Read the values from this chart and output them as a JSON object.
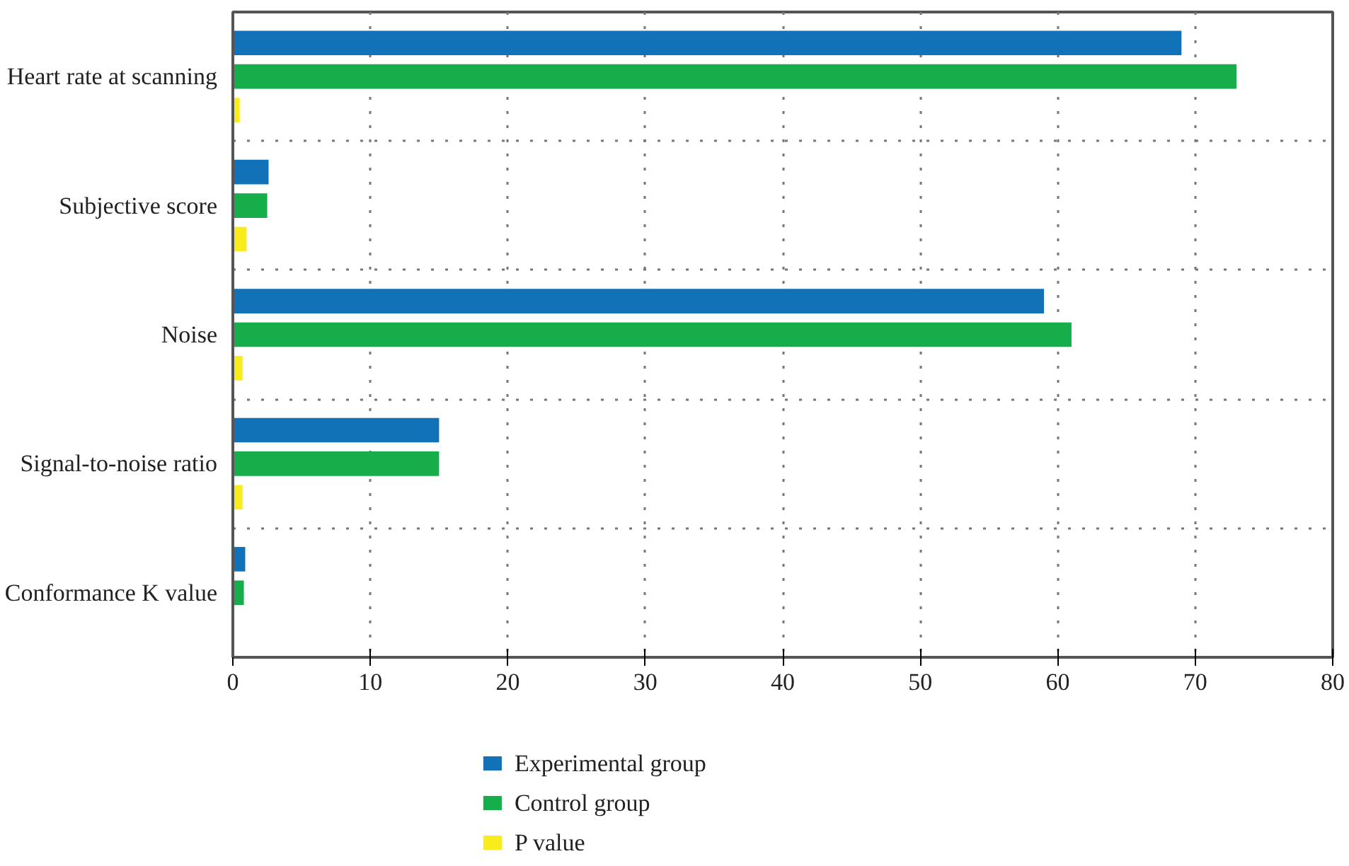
{
  "chart_data": {
    "type": "bar",
    "orientation": "horizontal",
    "categories": [
      "Heart rate at scanning",
      "Subjective score",
      "Noise",
      "Signal-to-noise ratio",
      "Conformance K value"
    ],
    "series": [
      {
        "name": "Experimental group",
        "color": "#1272b8",
        "values": [
          69,
          2.6,
          59,
          15,
          0.9
        ]
      },
      {
        "name": "Control group",
        "color": "#16ae4a",
        "values": [
          73,
          2.5,
          61,
          15,
          0.8
        ]
      },
      {
        "name": "P value",
        "color": "#f8ec1c",
        "values": [
          0.5,
          1.0,
          0.7,
          0.7,
          null
        ]
      }
    ],
    "xlim": [
      0,
      80
    ],
    "xticks": [
      0,
      10,
      20,
      30,
      40,
      50,
      60,
      70,
      80
    ],
    "grid": true,
    "legend": "bottom left"
  }
}
